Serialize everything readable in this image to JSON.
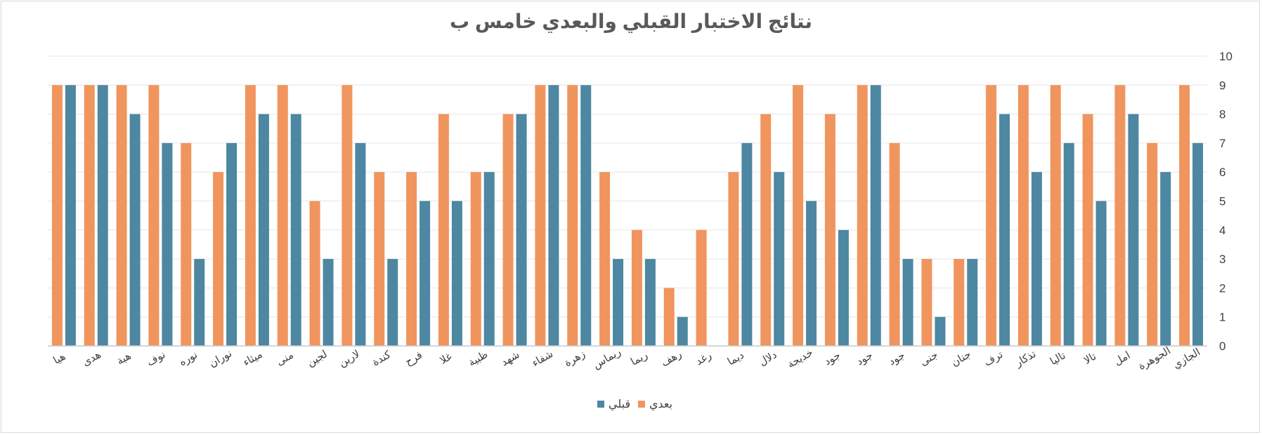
{
  "chart_data": {
    "type": "bar",
    "title": "نتائج الاختبار القبلي والبعدي خامس ب",
    "categories": [
      "هيا",
      "هدى",
      "هبة",
      "نوف",
      "نوره",
      "نوران",
      "ميثاء",
      "منى",
      "لجين",
      "لارين",
      "كندة",
      "فرح",
      "غلا",
      "ظبية",
      "شهد",
      "شفاء",
      "زهرة",
      "ريماس",
      "ريما",
      "رهف",
      "رغد",
      "ديما",
      "دلال",
      "خديجة",
      "جود",
      "جود",
      "جود",
      "جنى",
      "جنان",
      "ترف",
      "تذكار",
      "تاليا",
      "تالا",
      "امل",
      "الجوهرة",
      "الجازي"
    ],
    "series": [
      {
        "name": "بعدي",
        "color": "#F0955E",
        "values": [
          9,
          9,
          9,
          9,
          7,
          6,
          9,
          9,
          5,
          9,
          6,
          6,
          8,
          6,
          8,
          9,
          9,
          6,
          4,
          2,
          4,
          6,
          8,
          9,
          8,
          9,
          7,
          3,
          3,
          9,
          9,
          9,
          8,
          9,
          7,
          9
        ]
      },
      {
        "name": "قبلي",
        "color": "#4D87A1",
        "values": [
          9,
          9,
          8,
          7,
          3,
          7,
          8,
          8,
          3,
          7,
          3,
          5,
          5,
          6,
          8,
          9,
          9,
          3,
          3,
          1,
          0,
          7,
          6,
          5,
          4,
          9,
          3,
          1,
          3,
          8,
          6,
          7,
          5,
          8,
          6,
          7
        ]
      }
    ],
    "y_ticks": [
      "0",
      "1",
      "2",
      "3",
      "4",
      "5",
      "6",
      "7",
      "8",
      "9",
      "10"
    ],
    "ylim": [
      0,
      10
    ],
    "y_axis_position": "right",
    "x_direction": "right-to-left",
    "grid": true,
    "legend_position": "bottom"
  }
}
